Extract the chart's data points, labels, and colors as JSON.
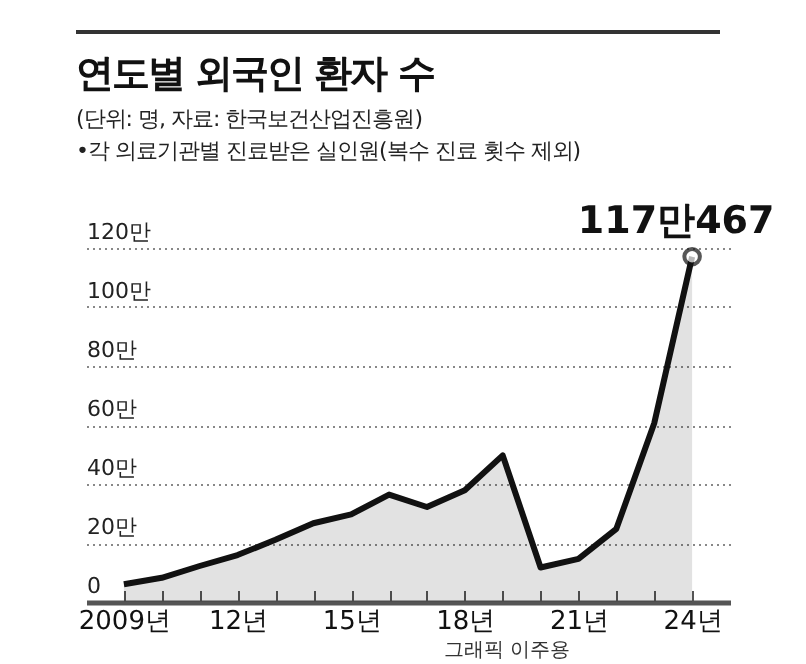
{
  "chart_data": {
    "type": "area",
    "title": "연도별 외국인 환자 수",
    "subtitle": "(단위: 명, 자료: 한국보건산업진흥원)",
    "annotations": [
      "•각 의료기관별 진료받은 실인원(복수 진료 횟수 제외)",
      "그래픽 이주용"
    ],
    "categories": [
      "2009년",
      null,
      null,
      "12년",
      null,
      null,
      "15년",
      null,
      null,
      "18년",
      null,
      null,
      "21년",
      null,
      null,
      "24년"
    ],
    "series": [
      {
        "color": "#111111",
        "values": [
          6.0,
          8.2,
          12.2,
          15.9,
          21.1,
          26.7,
          29.7,
          36.4,
          32.2,
          37.9,
          49.7,
          11.7,
          14.6,
          24.8,
          60.6,
          117.0467
        ],
        "value_labels": [
          null,
          null,
          null,
          null,
          null,
          null,
          null,
          null,
          null,
          null,
          null,
          null,
          null,
          null,
          null,
          "117만467"
        ]
      }
    ],
    "ylim": [
      0,
      120
    ],
    "yticks": [
      {
        "value": 0,
        "label": "0"
      },
      {
        "value": 20,
        "label": "20만"
      },
      {
        "value": 40,
        "label": "40만"
      },
      {
        "value": 60,
        "label": "60만"
      },
      {
        "value": 80,
        "label": "80만"
      },
      {
        "value": 100,
        "label": "100만"
      },
      {
        "value": 120,
        "label": "120만"
      }
    ],
    "grid": "y"
  }
}
